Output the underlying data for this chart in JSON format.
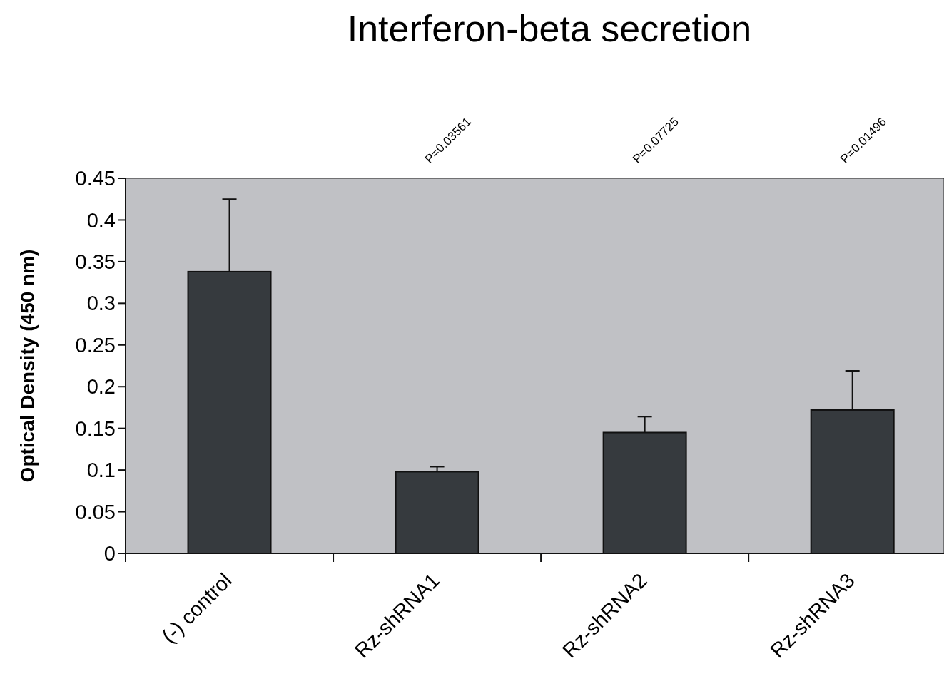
{
  "chart_data": {
    "type": "bar",
    "title": "Interferon-beta secretion",
    "ylabel": "Optical Density (450 nm)",
    "categories": [
      "(-) control",
      "Rz-shRNA1",
      "Rz-shRNA2",
      "Rz-shRNA3"
    ],
    "values": [
      0.338,
      0.098,
      0.145,
      0.172
    ],
    "color": "#363a3e",
    "errors": [
      [
        0.338,
        0.425
      ],
      [
        0.098,
        0.104
      ],
      [
        0.145,
        0.164
      ],
      [
        0.172,
        0.219
      ]
    ],
    "ylim": [
      0,
      0.45
    ],
    "yticks": [
      0,
      0.05,
      0.1,
      0.15,
      0.2,
      0.25,
      0.3,
      0.35,
      0.4,
      0.45
    ],
    "annotations": [
      "P=0.03561",
      "P=0.07725",
      "P=0.01496"
    ],
    "grid": false
  }
}
